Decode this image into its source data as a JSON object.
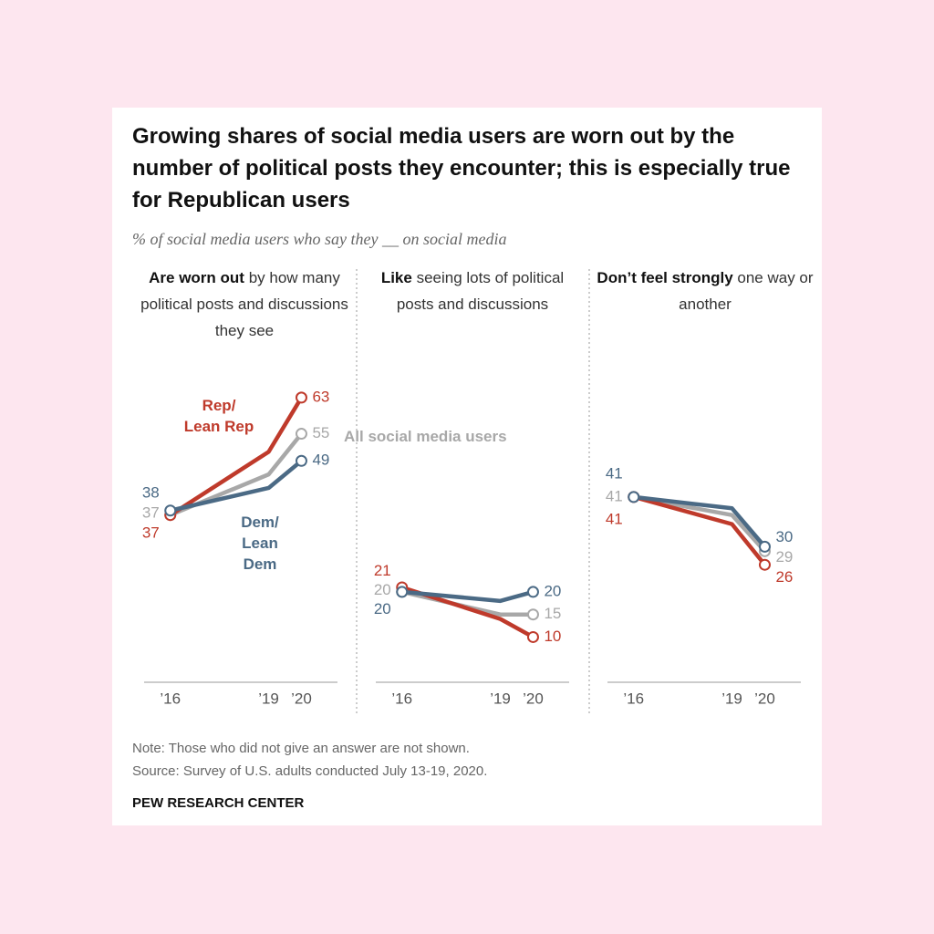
{
  "title": "Growing shares of social media users are worn out by the number of political posts they encounter; this is especially true for Republican users",
  "subtitle": "% of social media users who say they __ on social media",
  "note": "Note: Those who did not give an answer are not shown.",
  "source": "Source: Survey of U.S. adults conducted July 13-19, 2020.",
  "credit": "PEW RESEARCH CENTER",
  "chart_data": [
    {
      "type": "line",
      "title_bold": "Are worn out",
      "title_rest": "by how many political posts and discussions they see",
      "x": [
        2016,
        2019,
        2020
      ],
      "xlim": [
        2015.2,
        2021.1
      ],
      "xticks": [
        {
          "value": 2016,
          "label": "’16"
        },
        {
          "value": 2019,
          "label": "’19"
        },
        {
          "value": 2020,
          "label": "’20"
        }
      ],
      "ylim": [
        0,
        65
      ],
      "series": [
        {
          "color": "#a8a8a8",
          "values": [
            37,
            46,
            55
          ]
        },
        {
          "name": "Rep/ Lean Rep",
          "color": "#bf3a2b",
          "values": [
            37,
            51,
            63
          ]
        },
        {
          "name": "Dem/ Lean Dem",
          "color": "#4b6a85",
          "values": [
            38,
            43,
            49
          ]
        }
      ]
    },
    {
      "type": "line",
      "title_bold": "Like",
      "title_rest": "seeing lots of political posts and discussions",
      "x": [
        2016,
        2019,
        2020
      ],
      "xlim": [
        2015.2,
        2021.1
      ],
      "xticks": [
        {
          "value": 2016,
          "label": "’16"
        },
        {
          "value": 2019,
          "label": "’19"
        },
        {
          "value": 2020,
          "label": "’20"
        }
      ],
      "ylim": [
        0,
        65
      ],
      "series": [
        {
          "name": "All social media users",
          "color": "#a8a8a8",
          "values": [
            20,
            15,
            15
          ]
        },
        {
          "color": "#bf3a2b",
          "values": [
            21,
            14,
            10
          ]
        },
        {
          "color": "#4b6a85",
          "values": [
            20,
            18,
            20
          ]
        }
      ]
    },
    {
      "type": "line",
      "title_bold": "Don’t feel strongly",
      "title_rest": "one way or another",
      "x": [
        2016,
        2019,
        2020
      ],
      "xlim": [
        2015.2,
        2021.1
      ],
      "xticks": [
        {
          "value": 2016,
          "label": "’16"
        },
        {
          "value": 2019,
          "label": "’19"
        },
        {
          "value": 2020,
          "label": "’20"
        }
      ],
      "ylim": [
        0,
        65
      ],
      "series": [
        {
          "color": "#a8a8a8",
          "values": [
            41,
            37,
            29
          ]
        },
        {
          "color": "#bf3a2b",
          "values": [
            41,
            35,
            26
          ]
        },
        {
          "color": "#4b6a85",
          "values": [
            41,
            38.5,
            30
          ]
        }
      ]
    }
  ]
}
